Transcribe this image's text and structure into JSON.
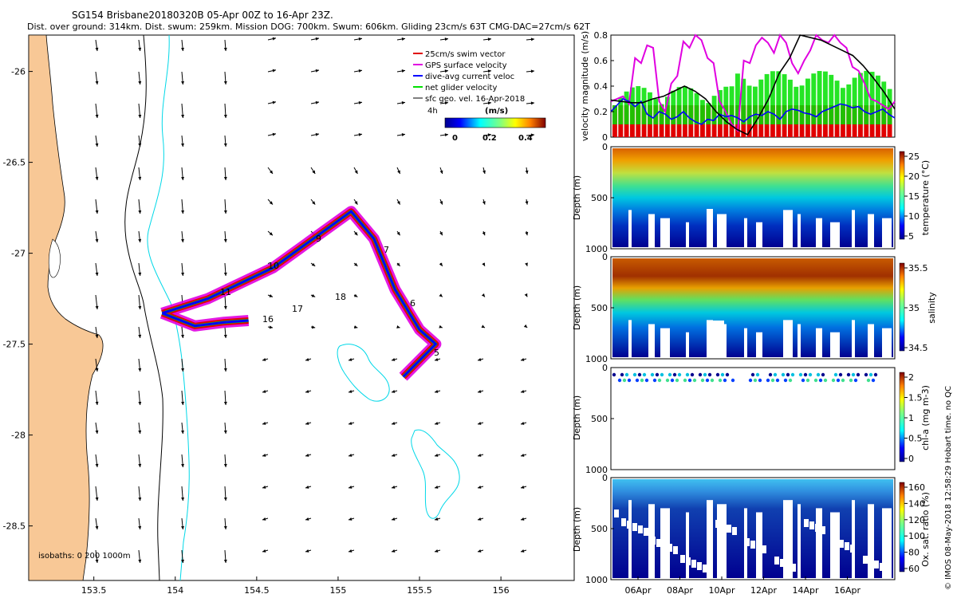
{
  "header": {
    "title": "SG154 Brisbane20180320B 05-Apr 00Z to 16-Apr 23Z.",
    "subtitle": "Dist. over ground: 314km. Dist. swum: 259km. Mission DOG: 700km. Swum: 606km. Gliding 23cm/s 63T CMG-DAC=27cm/s 62T"
  },
  "map": {
    "legend": [
      {
        "label": "25cm/s swim vector",
        "color": "#e00000"
      },
      {
        "label": "GPS surface velocity",
        "color": "#e000e0"
      },
      {
        "label": "dive-avg current veloc",
        "color": "#0000ff"
      },
      {
        "label": "net glider velocity",
        "color": "#00e000"
      },
      {
        "label": "sfc geo. vel. 16-Apr-2018",
        "color": "#000000"
      }
    ],
    "speed_label": "4h",
    "colorbar_title": "(m/s)",
    "colorbar_ticks": [
      "0",
      "0.2",
      "0.4"
    ],
    "isobaths_text": "isobaths: 0   200 1000m",
    "waypoints": [
      "5",
      "6",
      "7",
      "9",
      "10",
      "11",
      "16",
      "17",
      "18"
    ],
    "land_color": "#f8c896",
    "contour_color": "#00d8e8"
  },
  "footer_text": "© IMOS 08-May-2018 12:58:29 Hobart time. no QC",
  "chart_data": [
    {
      "type": "scatter",
      "name": "map",
      "xlim": [
        153.1,
        156.45
      ],
      "ylim": [
        -28.8,
        -25.8
      ],
      "xticks": [
        153.5,
        154,
        154.5,
        155,
        155.5,
        156
      ],
      "yticks": [
        -26,
        -26.5,
        -27,
        -27.5,
        -28,
        -28.5
      ],
      "track": [
        [
          153.92,
          -27.33
        ],
        [
          154.2,
          -27.25
        ],
        [
          154.6,
          -27.08
        ],
        [
          155.08,
          -26.77
        ],
        [
          155.22,
          -26.92
        ],
        [
          155.35,
          -27.2
        ],
        [
          155.5,
          -27.42
        ],
        [
          155.6,
          -27.5
        ],
        [
          155.4,
          -27.68
        ]
      ],
      "branch": [
        [
          153.92,
          -27.33
        ],
        [
          154.12,
          -27.4
        ],
        [
          154.3,
          -27.38
        ],
        [
          154.45,
          -27.37
        ]
      ]
    },
    {
      "type": "line",
      "name": "velocity",
      "ylabel": "velocity magnitude (m/s)",
      "ylim": [
        0,
        0.8
      ],
      "yticks": [
        "0",
        "0.2",
        "0.4",
        "0.6",
        "0.8"
      ],
      "series": [
        {
          "name": "GPS surface velocity",
          "color": "#e000e0",
          "values": [
            0.28,
            0.3,
            0.32,
            0.26,
            0.62,
            0.58,
            0.72,
            0.7,
            0.28,
            0.2,
            0.42,
            0.48,
            0.75,
            0.7,
            0.8,
            0.76,
            0.62,
            0.58,
            0.28,
            0.2,
            0.1,
            0.05,
            0.6,
            0.58,
            0.72,
            0.78,
            0.74,
            0.66,
            0.8,
            0.74,
            0.58,
            0.5,
            0.6,
            0.68,
            0.8,
            0.76,
            0.74,
            0.8,
            0.74,
            0.7,
            0.55,
            0.52,
            0.42,
            0.3,
            0.28,
            0.25,
            0.22,
            0.28
          ]
        },
        {
          "name": "dive-avg current veloc",
          "color": "#0000ff",
          "values": [
            0.2,
            0.25,
            0.3,
            0.28,
            0.24,
            0.28,
            0.18,
            0.15,
            0.2,
            0.18,
            0.14,
            0.16,
            0.2,
            0.15,
            0.12,
            0.1,
            0.14,
            0.13,
            0.18,
            0.16,
            0.17,
            0.15,
            0.12,
            0.16,
            0.18,
            0.17,
            0.2,
            0.18,
            0.14,
            0.2,
            0.22,
            0.21,
            0.19,
            0.18,
            0.16,
            0.2,
            0.22,
            0.24,
            0.26,
            0.25,
            0.23,
            0.24,
            0.2,
            0.18,
            0.2,
            0.22,
            0.18,
            0.15
          ]
        },
        {
          "name": "sfc geo",
          "color": "#000000",
          "values": [
            0.29,
            0.28,
            0.27,
            0.27,
            0.3,
            0.32,
            0.36,
            0.4,
            0.36,
            0.3,
            0.2,
            0.12,
            0.06,
            0.02,
            0.15,
            0.3,
            0.5,
            0.62,
            0.8,
            0.78,
            0.76,
            0.72,
            0.68,
            0.64,
            0.56,
            0.46,
            0.35,
            0.22
          ]
        }
      ]
    },
    {
      "type": "heatmap",
      "name": "temperature",
      "ylabel": "Depth (m)",
      "colorbar_label": "temperature (°C)",
      "yticks": [
        "0",
        "500",
        "1000"
      ],
      "colorbar_ticks": [
        "5",
        "10",
        "15",
        "20",
        "25"
      ]
    },
    {
      "type": "heatmap",
      "name": "salinity",
      "ylabel": "Depth (m)",
      "colorbar_label": "salinity",
      "yticks": [
        "0",
        "500",
        "1000"
      ],
      "colorbar_ticks": [
        "34.5",
        "35",
        "35.5"
      ]
    },
    {
      "type": "heatmap",
      "name": "chl",
      "ylabel": "Depth (m)",
      "colorbar_label": "chl-a (mg m-3)",
      "yticks": [
        "0",
        "500",
        "1000"
      ],
      "colorbar_ticks": [
        "0",
        "0.5",
        "1",
        "1.5",
        "2"
      ]
    },
    {
      "type": "heatmap",
      "name": "oxygen",
      "ylabel": "Depth (m)",
      "colorbar_label": "Ox. sat. ratio (%)",
      "yticks": [
        "0",
        "500",
        "1000"
      ],
      "colorbar_ticks": [
        "60",
        "80",
        "100",
        "120",
        "140",
        "160"
      ],
      "xticks": [
        "06Apr",
        "08Apr",
        "10Apr",
        "12Apr",
        "14Apr",
        "16Apr"
      ]
    }
  ]
}
